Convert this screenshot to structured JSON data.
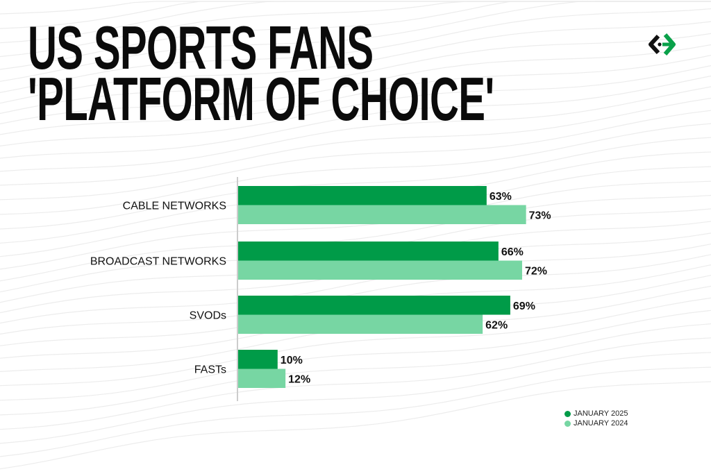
{
  "colors": {
    "jan2025": "#009b48",
    "jan2024": "#77d6a3",
    "text": "#111111",
    "axis": "#cccccc"
  },
  "logo": {
    "icon": "arrow-brackets-logo"
  },
  "chart_data": {
    "type": "bar",
    "orientation": "horizontal",
    "title": "US SPORTS FANS 'PLATFORM OF CHOICE'",
    "title_lines": [
      "US SPORTS FANS",
      "'PLATFORM OF CHOICE'"
    ],
    "categories": [
      "CABLE NETWORKS",
      "BROADCAST NETWORKS",
      "SVODs",
      "FASTs"
    ],
    "series": [
      {
        "name": "JANUARY 2025",
        "values": [
          63,
          66,
          69,
          10
        ],
        "labels": [
          "63%",
          "66%",
          "69%",
          "10%"
        ]
      },
      {
        "name": "JANUARY 2024",
        "values": [
          73,
          72,
          62,
          12
        ],
        "labels": [
          "73%",
          "72%",
          "62%",
          "12%"
        ]
      }
    ],
    "xlim": [
      0,
      100
    ],
    "grid": false,
    "legend_position": "bottom-right"
  }
}
